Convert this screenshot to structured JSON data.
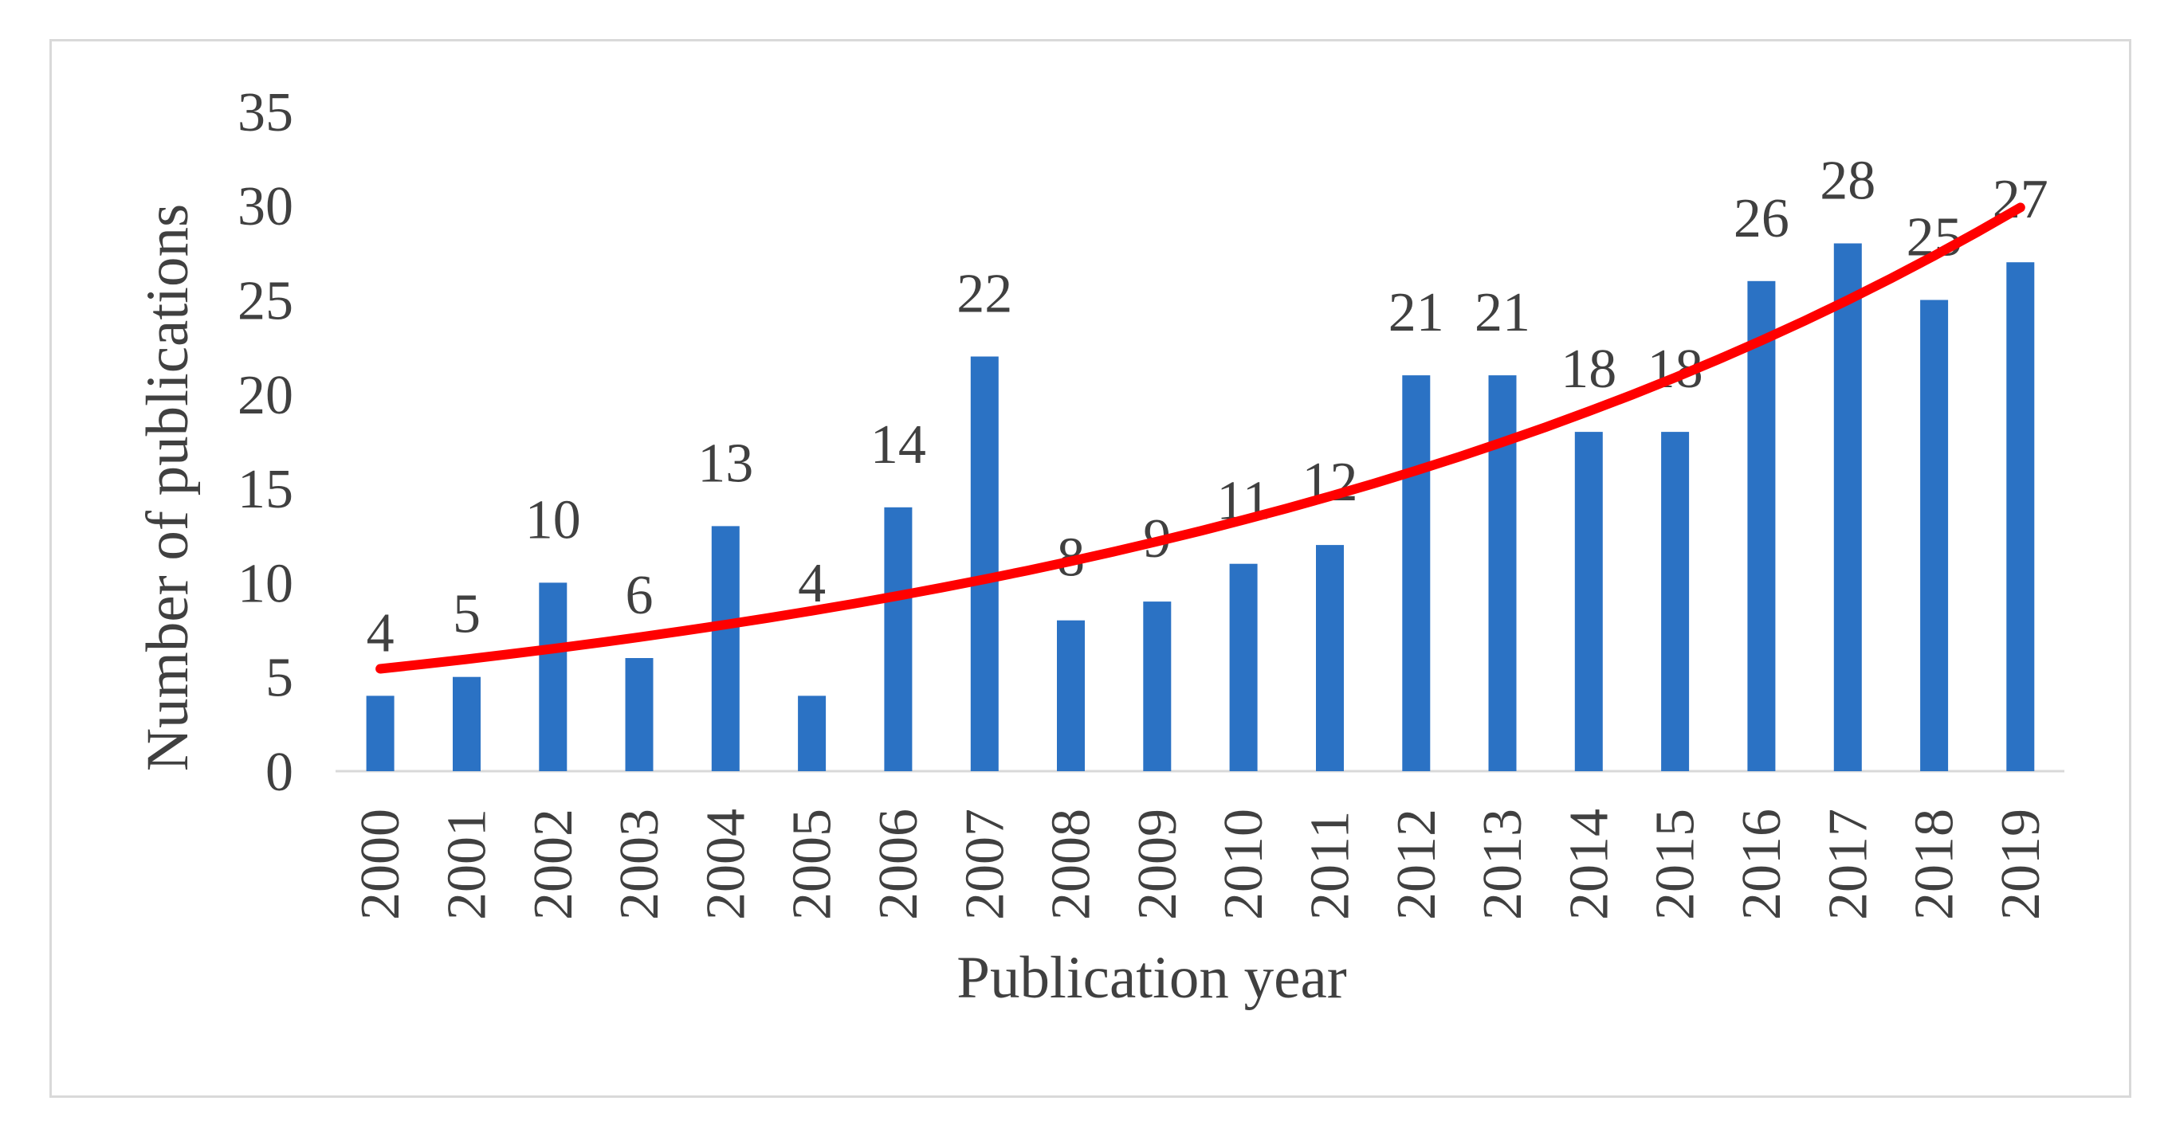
{
  "chart_data": {
    "type": "bar",
    "title": "",
    "xlabel": "Publication year",
    "ylabel": "Number of publications",
    "categories": [
      "2000",
      "2001",
      "2002",
      "2003",
      "2004",
      "2005",
      "2006",
      "2007",
      "2008",
      "2009",
      "2010",
      "2011",
      "2012",
      "2013",
      "2014",
      "2015",
      "2016",
      "2017",
      "2018",
      "2019"
    ],
    "values": [
      4,
      5,
      10,
      6,
      13,
      4,
      14,
      22,
      8,
      9,
      11,
      12,
      21,
      21,
      18,
      18,
      26,
      28,
      25,
      27
    ],
    "data_labels": [
      "4",
      "5",
      "10",
      "6",
      "13",
      "4",
      "14",
      "22",
      "8",
      "9",
      "11",
      "12",
      "21",
      "21",
      "18",
      "18",
      "26",
      "28",
      "25",
      "27"
    ],
    "yticks": [
      0,
      5,
      10,
      15,
      20,
      25,
      30,
      35
    ],
    "ylim": [
      0,
      35
    ],
    "grid": "off",
    "legend": "none",
    "series": [
      {
        "name": "Number of publications",
        "type": "bar",
        "color": "#2b72c4"
      },
      {
        "name": "Exponential trendline",
        "type": "line",
        "color": "#ff0000",
        "start_value": 5.43,
        "end_value": 29.9,
        "growth_rate": 0.0898
      }
    ],
    "colors": {
      "bar": "#2b72c4",
      "trendline": "#ff0000",
      "text": "#404040",
      "axis_line": "#d9d9d9",
      "figure_border": "#d9d9d9",
      "background": "#ffffff"
    }
  }
}
